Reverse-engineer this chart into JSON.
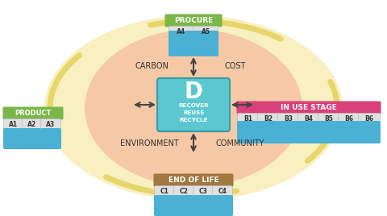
{
  "title": "",
  "bg_color": "#ffffff",
  "circle_color": "#f5c5a3",
  "circle_outer_color": "#f5e6a0",
  "center_box_color": "#5bc8d0",
  "center_box_border": "#3a9aa8",
  "center_label": "D",
  "center_text": "RECOVER\nREUSE\nRECYCLE",
  "product_box_color": "#7ab648",
  "product_label": "PRODUCT",
  "product_items": [
    "A1",
    "A2",
    "A3"
  ],
  "procure_box_color": "#7ab648",
  "procure_label": "PROCURE",
  "procure_items": [
    "A4",
    "A5"
  ],
  "inuse_box_color": "#d9417a",
  "inuse_label": "IN USE STAGE",
  "inuse_items": [
    "B1",
    "B2",
    "B3",
    "B4",
    "B5",
    "B6",
    "B6"
  ],
  "eol_box_color": "#a07840",
  "eol_label": "END OF LIFE",
  "eol_items": [
    "C1",
    "C2",
    "C3",
    "C4"
  ],
  "icon_box_color": "#4ab0d4",
  "icon_box_border": "#3a95b8",
  "label_bg": "#e0e0e0",
  "label_border": "#bbbbbb",
  "carbon_text": "CARBON",
  "cost_text": "COST",
  "environment_text": "ENVIRONMENT",
  "community_text": "COMMUNITY",
  "arrow_color": "#444444",
  "text_dark": "#333333",
  "text_light": "#ffffff"
}
